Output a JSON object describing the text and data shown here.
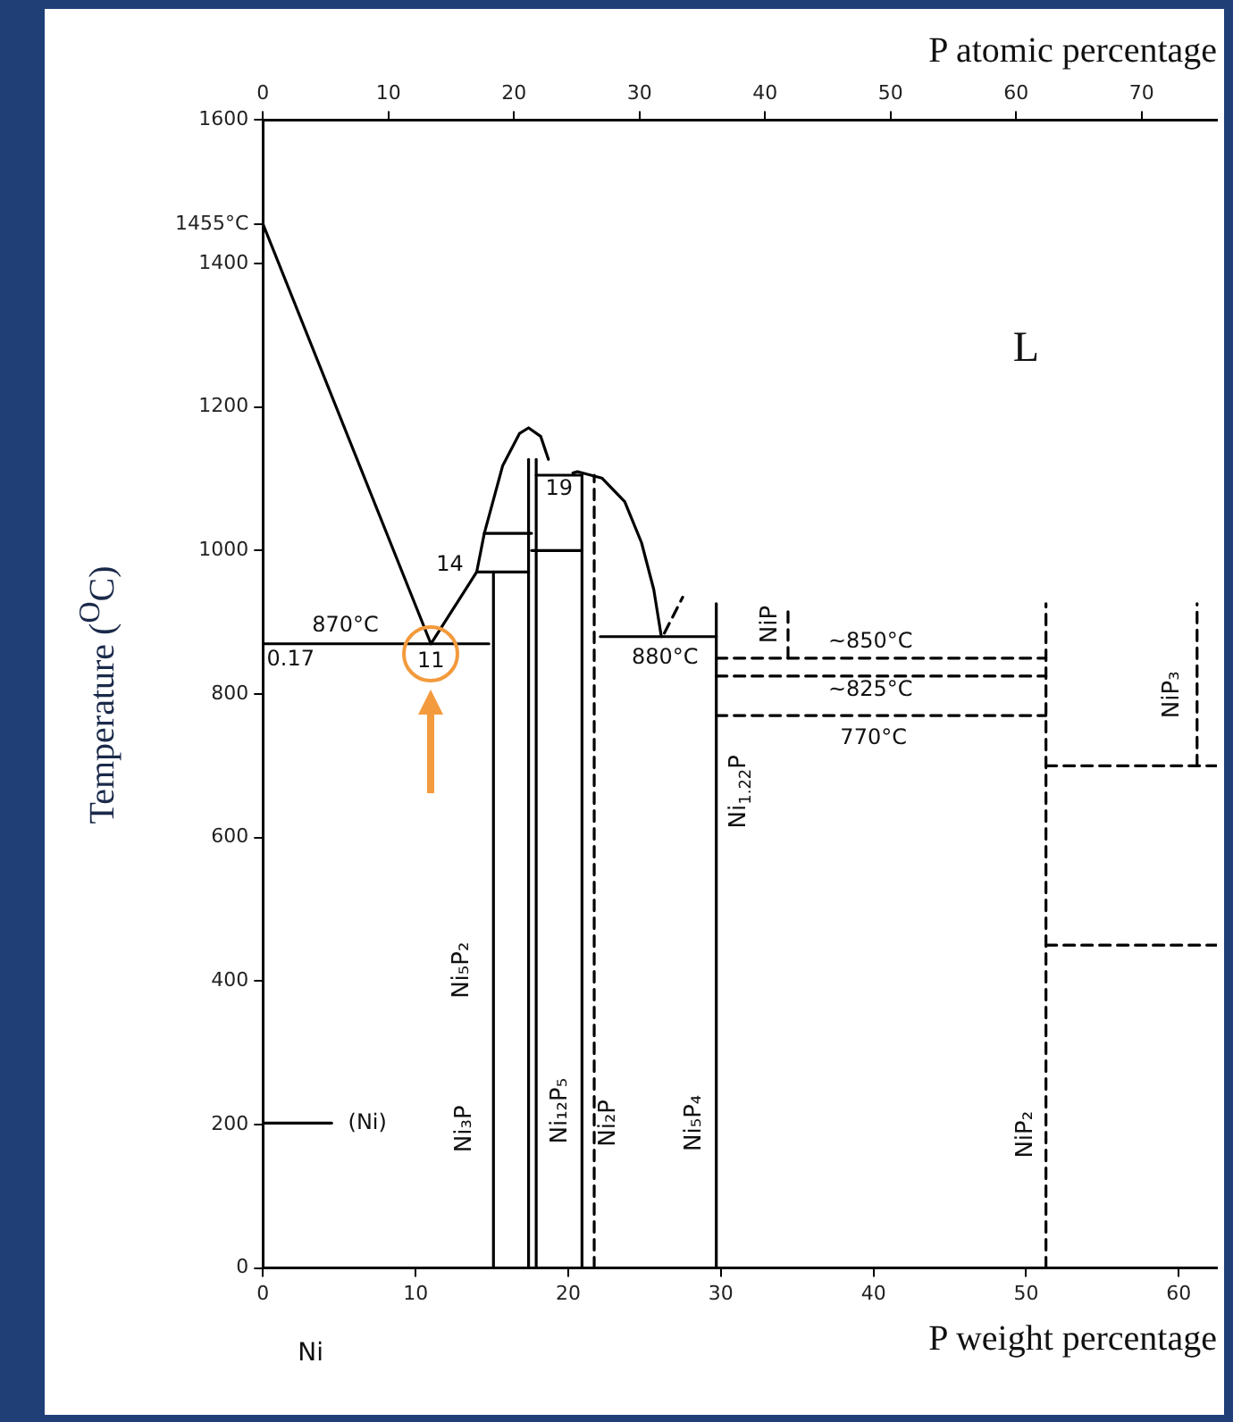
{
  "chart_data": {
    "type": "line",
    "xlabel": "P weight percentage",
    "ylabel": "Temperature ($^{O}$C)",
    "x2label": "P atomic percentage",
    "xlim": [
      0,
      62.5
    ],
    "xticks": [
      0,
      10,
      20,
      30,
      40,
      50,
      60
    ],
    "x2lim": [
      0,
      76
    ],
    "x2ticks": [
      0,
      10,
      20,
      30,
      40,
      50,
      60,
      70
    ],
    "ylim": [
      0,
      1600
    ],
    "yticks": [
      0,
      200,
      400,
      600,
      800,
      1000,
      1200,
      1400,
      {
        "value": 1455,
        "label": "1455°C"
      },
      1600
    ],
    "grid": false,
    "legend": false,
    "marker": "none",
    "series": [
      {
        "color": "#000000",
        "x": [
          0,
          11,
          14,
          14.5,
          15.7,
          16.8,
          17.4,
          18.2,
          18.7
        ],
        "values": [
          1455,
          870,
          970,
          1024,
          1118,
          1163,
          1171,
          1159,
          1127
        ]
      },
      {
        "color": "#000000",
        "x": [
          20.3,
          20.6,
          22.2,
          23.7,
          24.8,
          25.6,
          26.1
        ],
        "values": [
          1108,
          1110,
          1101,
          1068,
          1011,
          946,
          880
        ]
      },
      {
        "color": "#000000",
        "x": [
          0,
          14.8
        ],
        "values": [
          870,
          870
        ]
      },
      {
        "color": "#000000",
        "x": [
          0,
          4.5
        ],
        "values": [
          202,
          202
        ]
      },
      {
        "color": "#000000",
        "x": [
          14,
          17.4
        ],
        "values": [
          970,
          970
        ]
      },
      {
        "color": "#000000",
        "x": [
          14.5,
          17.6
        ],
        "values": [
          1024,
          1024
        ]
      },
      {
        "color": "#000000",
        "x": [
          17.6,
          20.9
        ],
        "values": [
          1000,
          1000
        ]
      },
      {
        "color": "#000000",
        "x": [
          17.9,
          20.9
        ],
        "values": [
          1105,
          1105
        ]
      },
      {
        "color": "#000000",
        "x": [
          15.1,
          15.1
        ],
        "values": [
          0,
          970
        ]
      },
      {
        "color": "#000000",
        "x": [
          17.4,
          17.4
        ],
        "values": [
          0,
          1127
        ]
      },
      {
        "color": "#000000",
        "x": [
          17.9,
          17.9
        ],
        "values": [
          0,
          1127
        ]
      },
      {
        "color": "#000000",
        "x": [
          20.9,
          20.9
        ],
        "values": [
          0,
          1105
        ]
      },
      {
        "color": "#000000",
        "line_style": "dashed",
        "x": [
          21.7,
          21.7
        ],
        "values": [
          0,
          1105
        ]
      },
      {
        "color": "#000000",
        "x": [
          22.1,
          29.7
        ],
        "values": [
          880,
          880
        ]
      },
      {
        "color": "#000000",
        "x": [
          29.7,
          29.7
        ],
        "values": [
          0,
          926
        ]
      },
      {
        "color": "#000000",
        "line_style": "dashed",
        "x": [
          26.3,
          27.5
        ],
        "values": [
          885,
          935
        ]
      },
      {
        "color": "#000000",
        "line_style": "dashed",
        "x": [
          29.7,
          51.3
        ],
        "values": [
          850,
          850
        ]
      },
      {
        "color": "#000000",
        "line_style": "dashed",
        "x": [
          29.7,
          51.3
        ],
        "values": [
          825,
          825
        ]
      },
      {
        "color": "#000000",
        "line_style": "dashed",
        "x": [
          29.7,
          51.3
        ],
        "values": [
          770,
          770
        ]
      },
      {
        "color": "#000000",
        "line_style": "dashed",
        "x": [
          34.4,
          34.4
        ],
        "values": [
          850,
          924
        ]
      },
      {
        "color": "#000000",
        "line_style": "dashed",
        "x": [
          51.3,
          51.3
        ],
        "values": [
          0,
          926
        ]
      },
      {
        "color": "#000000",
        "line_style": "dashed",
        "x": [
          61.2,
          61.2
        ],
        "values": [
          700,
          926
        ]
      },
      {
        "color": "#000000",
        "line_style": "dashed",
        "x": [
          51.3,
          62.5
        ],
        "values": [
          700,
          700
        ]
      },
      {
        "color": "#000000",
        "line_style": "dashed",
        "x": [
          51.3,
          62.5
        ],
        "values": [
          450,
          450
        ]
      }
    ],
    "annotations": [
      {
        "text": "870°C",
        "x": 5.4,
        "y": 870
      },
      {
        "text": "0.17",
        "x": 0.17,
        "y": 870
      },
      {
        "text": "11",
        "x": 11,
        "y": 870
      },
      {
        "text": "14",
        "x": 14,
        "y": 970
      },
      {
        "text": "19",
        "x": 19.4,
        "y": 1105
      },
      {
        "text": "880°C",
        "x": 26.1,
        "y": 880
      },
      {
        "text": "~850°C",
        "x": 39.8,
        "y": 850
      },
      {
        "text": "~825°C",
        "x": 39.8,
        "y": 825
      },
      {
        "text": "770°C",
        "x": 40,
        "y": 770
      },
      {
        "text": "(Ni)",
        "x": 4.5,
        "y": 202
      },
      {
        "text": "Ni₃P",
        "x": 15.1,
        "y": 194
      },
      {
        "text": "Ni₅P₂",
        "x": 17.4,
        "y": 415
      },
      {
        "text": "Ni₁₂P₅",
        "x": 20.9,
        "y": 219
      },
      {
        "text": "Ni₂P",
        "x": 21.7,
        "y": 202
      },
      {
        "text": "Ni₅P₄",
        "x": 29.7,
        "y": 202
      },
      {
        "text": "Ni$_{1.22}$P",
        "x": 29.7,
        "y": 664
      },
      {
        "text": "NiP",
        "x": 34.4,
        "y": 897
      },
      {
        "text": "NiP₃",
        "x": 61.2,
        "y": 799
      },
      {
        "text": "NiP₂",
        "x": 51.3,
        "y": 186
      },
      "L",
      "Ni"
    ]
  }
}
